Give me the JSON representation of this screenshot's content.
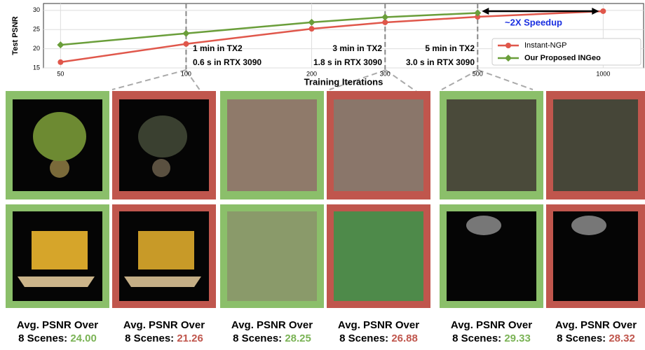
{
  "chart_data": {
    "type": "line",
    "xlabel": "Training Iterations",
    "ylabel": "Test PSNR",
    "x": [
      50,
      100,
      200,
      300,
      500,
      1000
    ],
    "series": [
      {
        "name": "Instant-NGP",
        "color": "#e0574b",
        "marker": "circle",
        "values": [
          16.5,
          21.26,
          25.2,
          26.88,
          28.32,
          29.8
        ]
      },
      {
        "name": "Our Proposed INGeo",
        "color": "#6a9e3a",
        "marker": "diamond",
        "values": [
          21.0,
          24.0,
          26.9,
          28.25,
          29.33,
          null
        ]
      }
    ],
    "xscale": "log",
    "xlim": [
      45.5,
      1250
    ],
    "ylim": [
      15,
      31.8
    ],
    "xticks": [
      50,
      100,
      200,
      300,
      500,
      1000
    ],
    "yticks": [
      15,
      20,
      25,
      30
    ],
    "grid": true,
    "legend": "lower right",
    "annotations": [
      "1 min in TX2",
      "0.6 s in RTX 3090",
      "3 min in TX2",
      "1.8 s in RTX 3090",
      "5 min in TX2",
      "3.0 s in RTX 3090",
      "~2X Speedup"
    ]
  },
  "captions": [
    {
      "line1": "Avg. PSNR Over",
      "prefix": "8 Scenes:",
      "value": "24.00"
    },
    {
      "line1": "Avg. PSNR Over",
      "prefix": "8 Scenes:",
      "value": "21.26"
    },
    {
      "line1": "Avg. PSNR Over",
      "prefix": "8 Scenes:",
      "value": "28.25"
    },
    {
      "line1": "Avg. PSNR Over",
      "prefix": "8 Scenes:",
      "value": "26.88"
    },
    {
      "line1": "Avg. PSNR Over",
      "prefix": "8 Scenes:",
      "value": "29.33"
    },
    {
      "line1": "Avg. PSNR Over",
      "prefix": "8 Scenes:",
      "value": "28.32"
    }
  ]
}
